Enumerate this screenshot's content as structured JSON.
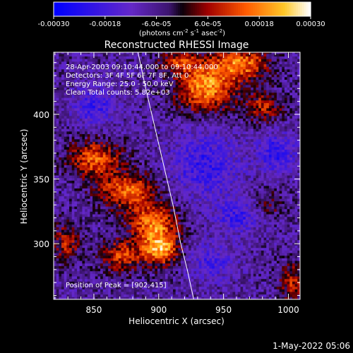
{
  "chart_data": {
    "type": "heatmap",
    "title": "Reconstructed RHESSI Image",
    "xlabel": "Heliocentric X (arcsec)",
    "ylabel": "Heliocentric Y (arcsec)",
    "xlim": [
      819,
      1009
    ],
    "ylim": [
      257,
      448
    ],
    "x_ticks": [
      850,
      900,
      950,
      1000
    ],
    "y_ticks": [
      300,
      350,
      400
    ],
    "colorbar": {
      "range": [
        -0.0003,
        0.0003
      ],
      "tick_labels": [
        "-0.00030",
        "-0.00018",
        "-6.0e-05",
        "6.0e-05",
        "0.00018",
        "0.00030"
      ],
      "unit_label": "(photons cm",
      "unit_sup1": "-2",
      "unit_mid": " s",
      "unit_sup2": "-1",
      "unit_end": " asec",
      "unit_sup3": "-2",
      "unit_close": ")"
    },
    "annotations": [
      "28-Apr-2003 09:10:44.000 to 09:10:44.000",
      "Detectors: 3F 4F 5F 6F 7F 8F, Att 0",
      "Energy Range: 25.0 - 50.0 keV",
      "Clean     Total counts: 5.82e+03"
    ],
    "peak_label": "Position of Peak = [902,415]",
    "peak": [
      902,
      415
    ],
    "limb_curve": [
      [
        884,
        448
      ],
      [
        890,
        420
      ],
      [
        897,
        390
      ],
      [
        904,
        360
      ],
      [
        911,
        330
      ],
      [
        917,
        300
      ],
      [
        922,
        280
      ],
      [
        927,
        257
      ]
    ],
    "bright_regions": [
      {
        "x": 935,
        "y": 420,
        "sx": 22,
        "sy": 18,
        "v": 0.9
      },
      {
        "x": 962,
        "y": 438,
        "sx": 22,
        "sy": 12,
        "v": 0.8
      },
      {
        "x": 915,
        "y": 440,
        "sx": 14,
        "sy": 8,
        "v": 0.6
      },
      {
        "x": 980,
        "y": 405,
        "sx": 14,
        "sy": 12,
        "v": 0.5
      },
      {
        "x": 850,
        "y": 365,
        "sx": 20,
        "sy": 14,
        "v": 0.7
      },
      {
        "x": 875,
        "y": 340,
        "sx": 22,
        "sy": 14,
        "v": 0.75
      },
      {
        "x": 895,
        "y": 315,
        "sx": 18,
        "sy": 14,
        "v": 0.8
      },
      {
        "x": 900,
        "y": 295,
        "sx": 14,
        "sy": 12,
        "v": 0.95
      },
      {
        "x": 870,
        "y": 290,
        "sx": 16,
        "sy": 12,
        "v": 0.6
      },
      {
        "x": 828,
        "y": 300,
        "sx": 10,
        "sy": 16,
        "v": 0.5
      },
      {
        "x": 1002,
        "y": 270,
        "sx": 10,
        "sy": 14,
        "v": 0.5
      },
      {
        "x": 985,
        "y": 330,
        "sx": 10,
        "sy": 10,
        "v": 0.3
      }
    ],
    "dark_regions": [
      {
        "x": 935,
        "y": 360,
        "sx": 25,
        "sy": 25,
        "v": -0.45
      },
      {
        "x": 990,
        "y": 370,
        "sx": 14,
        "sy": 14,
        "v": -0.5
      },
      {
        "x": 850,
        "y": 405,
        "sx": 16,
        "sy": 14,
        "v": -0.4
      },
      {
        "x": 940,
        "y": 285,
        "sx": 18,
        "sy": 14,
        "v": -0.35
      },
      {
        "x": 960,
        "y": 320,
        "sx": 16,
        "sy": 12,
        "v": -0.4
      }
    ]
  },
  "footer": {
    "date_label": "1-May-2022 05:06"
  }
}
